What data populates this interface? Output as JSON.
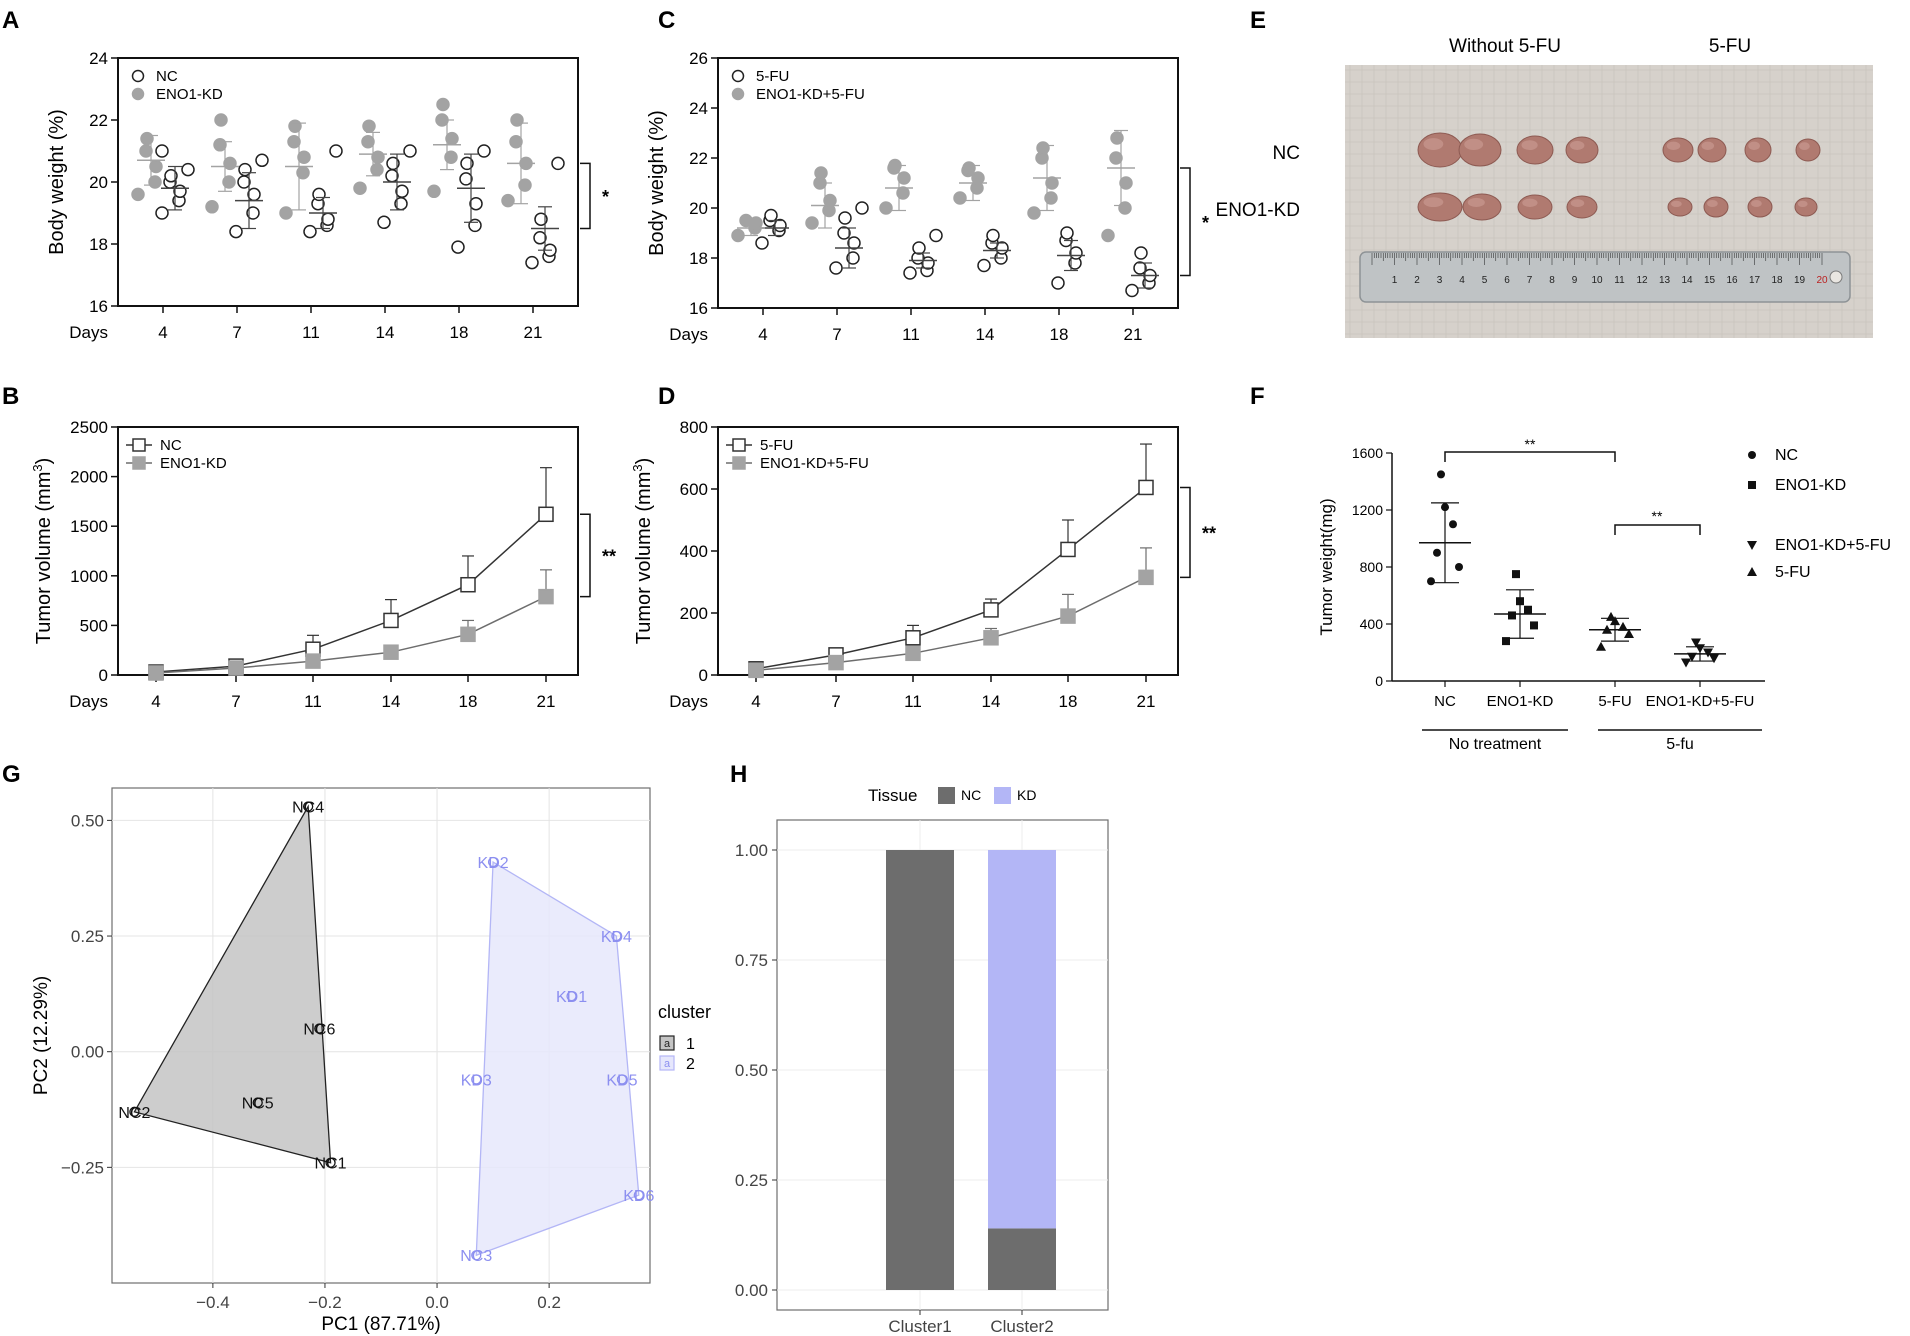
{
  "colors": {
    "grey": "#a3a3a3",
    "dark": "#6d6d6d",
    "black": "#111111",
    "kd": "#b3b6f6",
    "kd_text": "#8c8ff0",
    "nc_hull": "#c4c4c4",
    "photo_bg": "#d8d3cd"
  },
  "panels": {
    "A": "A",
    "B": "B",
    "C": "C",
    "D": "D",
    "E": "E",
    "F": "F",
    "G": "G",
    "H": "H"
  },
  "photo": {
    "col_without": "Without 5-FU",
    "col_with": "5-FU",
    "row_nc": "NC",
    "row_kd": "ENO1-KD",
    "ruler_numbers": [
      "1",
      "2",
      "3",
      "4",
      "5",
      "6",
      "7",
      "8",
      "9",
      "10",
      "11",
      "12",
      "13",
      "14",
      "15",
      "16",
      "17",
      "18",
      "19",
      "20"
    ]
  },
  "chart_data": [
    {
      "id": "A",
      "type": "scatter",
      "title": "",
      "xlabel_prefix": "Days",
      "ylabel": "Body weight (%)",
      "categories": [
        "4",
        "7",
        "11",
        "14",
        "18",
        "21"
      ],
      "yticks": [
        "16",
        "18",
        "20",
        "22",
        "24"
      ],
      "ylim": [
        16,
        24
      ],
      "significance": "*",
      "series": [
        {
          "name": "NC",
          "marker": "open-circle",
          "points": [
            [
              19.0,
              19.4,
              19.7,
              20.0,
              20.2,
              20.4,
              21.0
            ],
            [
              18.4,
              19.0,
              19.6,
              20.0,
              20.4,
              20.7
            ],
            [
              18.4,
              18.6,
              18.8,
              19.3,
              19.6,
              21.0
            ],
            [
              18.7,
              19.3,
              19.7,
              20.2,
              20.6,
              21.0
            ],
            [
              17.9,
              18.6,
              19.3,
              20.1,
              20.6,
              21.0
            ],
            [
              17.4,
              17.6,
              17.8,
              18.2,
              18.8,
              20.6
            ]
          ],
          "means": [
            19.8,
            19.4,
            19.0,
            20.0,
            19.8,
            18.5
          ],
          "sds": [
            0.7,
            0.9,
            0.5,
            0.9,
            1.1,
            0.7
          ]
        },
        {
          "name": "ENO1-KD",
          "marker": "filled-circle",
          "points": [
            [
              19.6,
              20.0,
              20.5,
              21.0,
              21.4
            ],
            [
              19.2,
              20.0,
              20.6,
              21.2,
              22.0
            ],
            [
              19.0,
              20.3,
              20.8,
              21.3,
              21.8
            ],
            [
              19.8,
              20.4,
              20.8,
              21.3,
              21.8
            ],
            [
              19.7,
              20.8,
              21.4,
              22.0,
              22.5
            ],
            [
              19.4,
              19.9,
              20.6,
              21.3,
              22.0
            ]
          ],
          "means": [
            20.7,
            20.5,
            20.5,
            20.9,
            21.2,
            20.6
          ],
          "sds": [
            0.8,
            0.8,
            1.4,
            0.7,
            0.8,
            1.3
          ]
        }
      ]
    },
    {
      "id": "B",
      "type": "line",
      "xlabel_prefix": "Days",
      "ylabel": "Tumor volume (mm",
      "ylabel_sup": "3",
      "ylabel_close": ")",
      "categories": [
        "4",
        "7",
        "11",
        "14",
        "18",
        "21"
      ],
      "yticks": [
        "0",
        "500",
        "1000",
        "1500",
        "2000",
        "2500"
      ],
      "ylim": [
        0,
        2500
      ],
      "significance": "**",
      "series": [
        {
          "name": "NC",
          "marker": "open-square",
          "values": [
            30,
            90,
            260,
            550,
            910,
            1620
          ],
          "errors": [
            0,
            20,
            140,
            210,
            290,
            470
          ]
        },
        {
          "name": "ENO1-KD",
          "marker": "filled-square",
          "values": [
            20,
            70,
            140,
            230,
            410,
            790
          ],
          "errors": [
            0,
            15,
            40,
            70,
            140,
            270
          ]
        }
      ]
    },
    {
      "id": "C",
      "type": "scatter",
      "xlabel_prefix": "Days",
      "ylabel": "Body weight (%)",
      "categories": [
        "4",
        "7",
        "11",
        "14",
        "18",
        "21"
      ],
      "yticks": [
        "16",
        "18",
        "20",
        "22",
        "24",
        "26"
      ],
      "ylim": [
        16,
        26
      ],
      "significance": "*",
      "series": [
        {
          "name": "5-FU",
          "marker": "open-circle",
          "points": [
            [
              18.6,
              19.1,
              19.3,
              19.5,
              19.7
            ],
            [
              17.6,
              18.0,
              18.6,
              19.0,
              19.6,
              20.0
            ],
            [
              17.4,
              17.5,
              17.8,
              18.0,
              18.4,
              18.9
            ],
            [
              17.7,
              18.0,
              18.4,
              18.6,
              18.9
            ],
            [
              17.0,
              17.8,
              18.2,
              18.7,
              19.0
            ],
            [
              16.7,
              17.0,
              17.3,
              17.6,
              18.2
            ]
          ],
          "means": [
            19.2,
            18.4,
            17.9,
            18.3,
            18.1,
            17.3
          ],
          "sds": [
            0.3,
            0.8,
            0.3,
            0.3,
            0.6,
            0.5
          ]
        },
        {
          "name": "ENO1-KD+5-FU",
          "marker": "filled-circle",
          "points": [
            [
              18.9,
              19.2,
              19.4,
              19.5
            ],
            [
              19.4,
              19.9,
              20.3,
              21.0,
              21.4
            ],
            [
              20.0,
              20.6,
              21.2,
              21.6,
              21.7
            ],
            [
              20.4,
              20.8,
              21.2,
              21.5,
              21.6
            ],
            [
              19.8,
              20.4,
              21.0,
              22.0,
              22.4
            ],
            [
              18.9,
              20.0,
              21.0,
              22.0,
              22.8
            ]
          ],
          "means": [
            19.2,
            20.1,
            20.8,
            21.0,
            21.2,
            21.6
          ],
          "sds": [
            0.3,
            0.9,
            0.9,
            0.7,
            1.3,
            1.5
          ]
        }
      ]
    },
    {
      "id": "D",
      "type": "line",
      "xlabel_prefix": "Days",
      "ylabel": "Tumor volume (mm",
      "ylabel_sup": "3",
      "ylabel_close": ")",
      "categories": [
        "4",
        "7",
        "11",
        "14",
        "18",
        "21"
      ],
      "yticks": [
        "0",
        "200",
        "400",
        "600",
        "800"
      ],
      "ylim": [
        0,
        800
      ],
      "significance": "**",
      "series": [
        {
          "name": "5-FU",
          "marker": "open-square",
          "values": [
            20,
            65,
            120,
            210,
            405,
            605
          ],
          "errors": [
            0,
            15,
            40,
            35,
            95,
            140
          ]
        },
        {
          "name": "ENO1-KD+5-FU",
          "marker": "filled-square",
          "values": [
            15,
            40,
            70,
            120,
            190,
            315
          ],
          "errors": [
            0,
            10,
            20,
            30,
            70,
            95
          ]
        }
      ]
    },
    {
      "id": "F",
      "type": "scatter",
      "ylabel": "Tumor weight(mg)",
      "categories": [
        "NC",
        "ENO1-KD",
        "5-FU",
        "ENO1-KD+5-FU"
      ],
      "yticks": [
        "0",
        "400",
        "800",
        "1200",
        "1600"
      ],
      "ylim": [
        0,
        1600
      ],
      "groups": [
        "No treatment",
        "5-fu"
      ],
      "significance": [
        "**",
        "**"
      ],
      "legend": [
        {
          "name": "NC",
          "marker": "circle"
        },
        {
          "name": "ENO1-KD",
          "marker": "square"
        },
        {
          "name": "ENO1-KD+5-FU",
          "marker": "triangle-down"
        },
        {
          "name": "5-FU",
          "marker": "triangle-up"
        }
      ],
      "series": [
        {
          "name": "NC",
          "marker": "circle",
          "points": [
            700,
            800,
            900,
            1100,
            1220,
            1450
          ],
          "mean": 970,
          "sd": 280
        },
        {
          "name": "ENO1-KD",
          "marker": "square",
          "points": [
            280,
            390,
            460,
            500,
            560,
            750
          ],
          "mean": 470,
          "sd": 170
        },
        {
          "name": "5-FU",
          "marker": "triangle-up",
          "points": [
            240,
            330,
            360,
            380,
            420,
            450
          ],
          "mean": 360,
          "sd": 80
        },
        {
          "name": "ENO1-KD+5-FU",
          "marker": "triangle-down",
          "points": [
            130,
            160,
            170,
            200,
            230,
            270
          ],
          "mean": 190,
          "sd": 50
        }
      ]
    },
    {
      "id": "G",
      "type": "scatter",
      "xlabel": "PC1 (87.71%)",
      "ylabel": "PC2 (12.29%)",
      "xticks": [
        "−0.4",
        "−0.2",
        "0.0",
        "0.2"
      ],
      "xtick_values": [
        -0.4,
        -0.2,
        0.0,
        0.2
      ],
      "yticks": [
        "−0.25",
        "0.00",
        "0.25",
        "0.50"
      ],
      "ytick_values": [
        -0.25,
        0.0,
        0.25,
        0.5
      ],
      "xlim": [
        -0.58,
        0.38
      ],
      "ylim": [
        -0.5,
        0.57
      ],
      "legend_title": "cluster",
      "legend": [
        {
          "name": "1",
          "key": "a"
        },
        {
          "name": "2",
          "key": "a"
        }
      ],
      "points": [
        {
          "label": "NC4",
          "x": -0.23,
          "y": 0.53,
          "cluster": 1
        },
        {
          "label": "NC6",
          "x": -0.21,
          "y": 0.05,
          "cluster": 1
        },
        {
          "label": "NC5",
          "x": -0.32,
          "y": -0.11,
          "cluster": 1
        },
        {
          "label": "NC2",
          "x": -0.54,
          "y": -0.13,
          "cluster": 1
        },
        {
          "label": "NC1",
          "x": -0.19,
          "y": -0.24,
          "cluster": 1
        },
        {
          "label": "KD2",
          "x": 0.1,
          "y": 0.41,
          "cluster": 2
        },
        {
          "label": "KD4",
          "x": 0.32,
          "y": 0.25,
          "cluster": 2
        },
        {
          "label": "KD1",
          "x": 0.24,
          "y": 0.12,
          "cluster": 2
        },
        {
          "label": "KD3",
          "x": 0.07,
          "y": -0.06,
          "cluster": 2
        },
        {
          "label": "KD5",
          "x": 0.33,
          "y": -0.06,
          "cluster": 2
        },
        {
          "label": "KD6",
          "x": 0.36,
          "y": -0.31,
          "cluster": 2
        },
        {
          "label": "NC3",
          "x": 0.07,
          "y": -0.44,
          "cluster": 2
        }
      ],
      "hulls": [
        {
          "cluster": 1,
          "order": [
            "NC4",
            "NC1",
            "NC2"
          ]
        },
        {
          "cluster": 2,
          "order": [
            "KD2",
            "KD4",
            "KD6",
            "NC3"
          ]
        }
      ]
    },
    {
      "id": "H",
      "type": "bar",
      "stacked": true,
      "legend_title": "Tissue",
      "categories": [
        "Cluster1",
        "Cluster2"
      ],
      "yticks": [
        "0.00",
        "0.25",
        "0.50",
        "0.75",
        "1.00"
      ],
      "ylim": [
        0,
        1
      ],
      "series": [
        {
          "name": "NC",
          "values": [
            1.0,
            0.14
          ]
        },
        {
          "name": "KD",
          "values": [
            0.0,
            0.86
          ]
        }
      ]
    }
  ]
}
